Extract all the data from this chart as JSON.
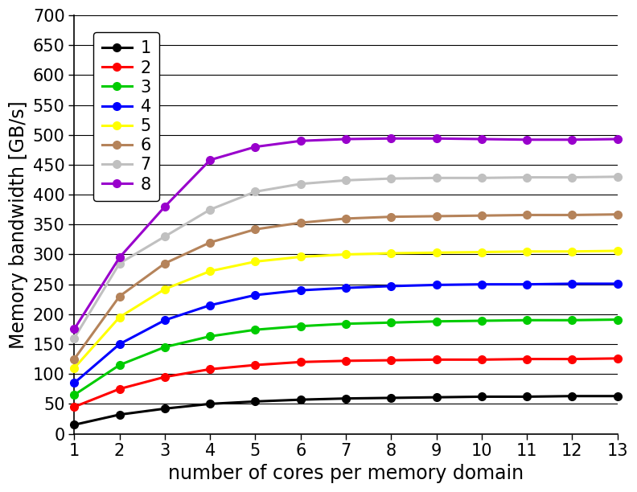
{
  "series": [
    {
      "label": "1",
      "color": "#000000",
      "values": [
        15,
        32,
        42,
        50,
        54,
        57,
        59,
        60,
        61,
        62,
        62,
        63,
        63
      ]
    },
    {
      "label": "2",
      "color": "#ff0000",
      "values": [
        45,
        75,
        95,
        108,
        115,
        120,
        122,
        123,
        124,
        124,
        125,
        125,
        126
      ]
    },
    {
      "label": "3",
      "color": "#00cc00",
      "values": [
        65,
        115,
        145,
        163,
        174,
        180,
        184,
        186,
        188,
        189,
        190,
        190,
        191
      ]
    },
    {
      "label": "4",
      "color": "#0000ff",
      "values": [
        85,
        150,
        190,
        215,
        232,
        240,
        244,
        247,
        249,
        250,
        250,
        251,
        251
      ]
    },
    {
      "label": "5",
      "color": "#ffff00",
      "values": [
        110,
        195,
        242,
        272,
        288,
        296,
        300,
        302,
        303,
        304,
        305,
        305,
        306
      ]
    },
    {
      "label": "6",
      "color": "#b5835a",
      "values": [
        125,
        230,
        285,
        320,
        342,
        353,
        360,
        363,
        364,
        365,
        366,
        366,
        367
      ]
    },
    {
      "label": "7",
      "color": "#c0c0c0",
      "values": [
        160,
        285,
        330,
        375,
        405,
        418,
        424,
        427,
        428,
        428,
        429,
        429,
        430
      ]
    },
    {
      "label": "8",
      "color": "#9900cc",
      "values": [
        175,
        295,
        380,
        458,
        480,
        490,
        493,
        494,
        494,
        493,
        492,
        492,
        493
      ]
    }
  ],
  "x_values": [
    1,
    2,
    3,
    4,
    5,
    6,
    7,
    8,
    9,
    10,
    11,
    12,
    13
  ],
  "xlabel": "number of cores per memory domain",
  "ylabel": "Memory bandwidth [GB/s]",
  "ylim": [
    0,
    700
  ],
  "yticks": [
    0,
    50,
    100,
    150,
    200,
    250,
    300,
    350,
    400,
    450,
    500,
    550,
    600,
    650,
    700
  ],
  "xlim": [
    1,
    13
  ],
  "xticks": [
    1,
    2,
    3,
    4,
    5,
    6,
    7,
    8,
    9,
    10,
    11,
    12,
    13
  ],
  "grid_color": "#000000",
  "background_color": "#ffffff",
  "legend_loc": "upper left",
  "marker": "o",
  "markersize": 7,
  "linewidth": 2.2,
  "label_fontsize": 17,
  "tick_fontsize": 15,
  "legend_fontsize": 15
}
